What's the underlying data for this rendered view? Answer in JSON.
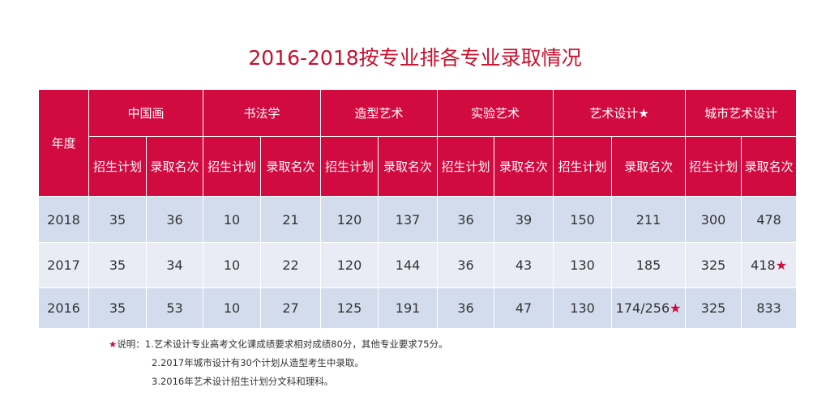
{
  "title": "2016-2018按专业排各专业录取情况",
  "table": {
    "year_header": "年度",
    "groups": [
      "中国画",
      "书法学",
      "造型艺术",
      "实验艺术",
      "艺术设计★",
      "城市艺术设计"
    ],
    "subheaders": [
      "招生计划",
      "录取名次",
      "招生计划",
      "录取名次",
      "招生计划",
      "录取名次",
      "招生计划",
      "录取名次",
      "招生计划",
      "录取名次",
      "招生计划",
      "录取名次"
    ],
    "rows": [
      [
        "2018",
        "35",
        "36",
        "10",
        "21",
        "120",
        "137",
        "36",
        "39",
        "150",
        "211",
        "300",
        "478"
      ],
      [
        "2017",
        "35",
        "34",
        "10",
        "22",
        "120",
        "144",
        "36",
        "43",
        "130",
        "185",
        "325",
        {
          "text": "418",
          "star": "★"
        }
      ],
      [
        "2016",
        "35",
        "53",
        "10",
        "27",
        "125",
        "191",
        "36",
        "47",
        "130",
        {
          "text": "174/256",
          "star": "★"
        },
        "325",
        "833"
      ]
    ]
  },
  "notes": {
    "star": "★",
    "label": "说明：",
    "items": [
      "1.艺术设计专业高考文化课成绩要求相对成绩80分，其他专业要求75分。",
      "2.2017年城市设计有30个计划从造型考生中录取。",
      "3.2016年艺术设计招生计划分文科和理科。"
    ]
  }
}
